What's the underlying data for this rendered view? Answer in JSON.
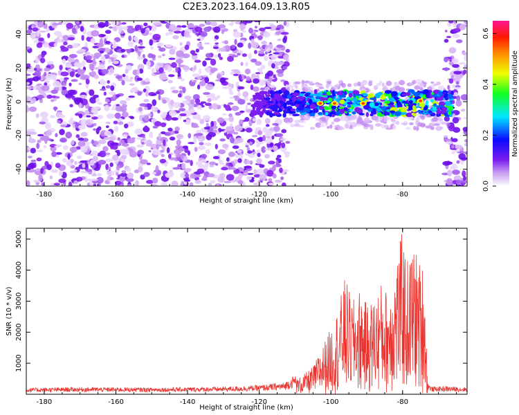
{
  "title": "C2E3.2023.164.09.13.R05",
  "chart_data": [
    {
      "type": "heatmap",
      "xlabel": "Height of straight line (km)",
      "ylabel": "Frequency (Hz)",
      "xlim": [
        -185,
        -62
      ],
      "ylim": [
        -50,
        48
      ],
      "xticks": [
        -180,
        -160,
        -140,
        -120,
        -100,
        -80
      ],
      "yticks": [
        -40,
        -20,
        0,
        20,
        40
      ],
      "colorbar": {
        "label": "Normalized spectral amplitude",
        "range": [
          0,
          0.65
        ],
        "ticks": [
          0.0,
          0.2,
          0.4,
          0.6
        ],
        "colormap": "rainbow (white-purple-blue-cyan-green-yellow-red-pink)"
      },
      "features": {
        "noise_region_x": [
          -185,
          -112
        ],
        "empty_region_x": [
          -112,
          -68
        ],
        "noise_region_right_x": [
          -68,
          -62
        ],
        "signal_band_x": [
          -122,
          -66
        ],
        "signal_band_frequency": [
          -8,
          6
        ],
        "peak_amplitude": 0.65
      }
    },
    {
      "type": "line",
      "xlabel": "Height of straight line (km)",
      "ylabel": "SNR (10 * v/v)",
      "xlim": [
        -185,
        -62
      ],
      "ylim": [
        0,
        5350
      ],
      "xticks": [
        -180,
        -160,
        -140,
        -120,
        -100,
        -80
      ],
      "yticks": [
        1000,
        2000,
        3000,
        4000,
        5000
      ],
      "color": "#e8332f",
      "series": [
        {
          "x": [
            -185,
            -170,
            -150,
            -130,
            -120,
            -113,
            -108,
            -105,
            -103,
            -101,
            -99,
            -97,
            -96,
            -94,
            -92,
            -90,
            -88,
            -86,
            -84,
            -82,
            -80,
            -79,
            -78,
            -77,
            -76,
            -75,
            -74,
            -73,
            -72,
            -68,
            -62
          ],
          "y": [
            150,
            170,
            160,
            180,
            220,
            280,
            600,
            900,
            1400,
            1900,
            2400,
            3300,
            3800,
            3000,
            3400,
            2900,
            3100,
            3600,
            3300,
            4200,
            5350,
            4300,
            4500,
            4800,
            4600,
            4200,
            4300,
            300,
            180,
            190,
            170
          ]
        }
      ]
    }
  ]
}
